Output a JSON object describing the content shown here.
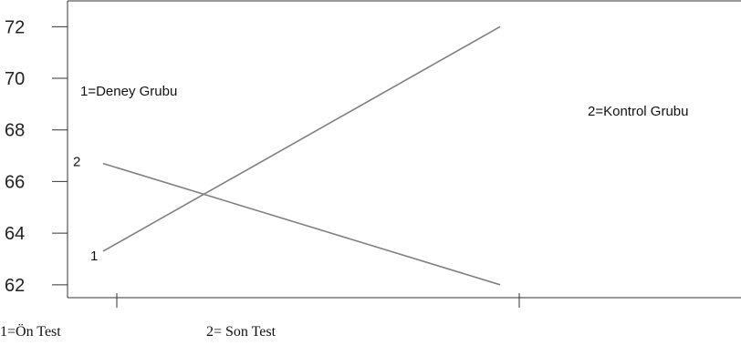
{
  "chart_data": {
    "type": "line",
    "title": "",
    "xlabel": "",
    "ylabel": "",
    "x": [
      1,
      2
    ],
    "ylim": [
      61.5,
      73
    ],
    "yticks": [
      62,
      64,
      66,
      68,
      70,
      72
    ],
    "series": [
      {
        "name": "1",
        "values": [
          63.3,
          72.0
        ],
        "color": "#808080"
      },
      {
        "name": "2",
        "values": [
          66.7,
          62.0
        ],
        "color": "#808080"
      }
    ],
    "annotations": {
      "group1": "1=Deney Grubu",
      "group2": "2=Kontrol Grubu",
      "x1": "1=Ön Test",
      "x2": "2= Son Test"
    },
    "grid": false
  }
}
